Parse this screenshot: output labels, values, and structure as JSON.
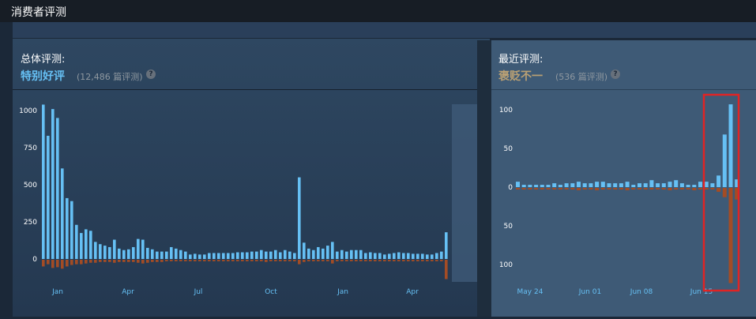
{
  "section_title": "消费者评测",
  "overall": {
    "label": "总体评测:",
    "summary": "特别好评",
    "count": "(12,486 篇评测)",
    "help": "?"
  },
  "recent": {
    "label": "最近评测:",
    "summary": "褒贬不一",
    "count": "(536 篇评测)",
    "help": "?"
  },
  "colors": {
    "positive": "#66c0f4",
    "negative": "#a34c25",
    "overall_summary": "#66c0f4",
    "recent_summary": "#b9a074",
    "highlight": "#e02424"
  },
  "chart_data": [
    {
      "type": "bar",
      "name": "overall-histogram",
      "y_ticks": [
        "1000",
        "750",
        "500",
        "250",
        "0"
      ],
      "ylim": [
        -70,
        1040
      ],
      "x_ticks": [
        "Jan",
        "Apr",
        "Jul",
        "Oct",
        "Jan",
        "Apr"
      ],
      "positive": [
        1040,
        830,
        1010,
        950,
        610,
        410,
        390,
        230,
        175,
        200,
        190,
        115,
        100,
        90,
        80,
        130,
        70,
        60,
        65,
        80,
        135,
        130,
        75,
        65,
        50,
        50,
        50,
        80,
        70,
        60,
        50,
        30,
        35,
        30,
        30,
        40,
        40,
        40,
        40,
        40,
        40,
        45,
        45,
        45,
        50,
        50,
        60,
        50,
        50,
        60,
        45,
        60,
        50,
        40,
        550,
        110,
        70,
        60,
        80,
        70,
        90,
        115,
        50,
        60,
        50,
        60,
        60,
        60,
        40,
        45,
        40,
        40,
        30,
        35,
        40,
        45,
        40,
        40,
        35,
        35,
        35,
        30,
        30,
        40,
        50,
        180
      ],
      "negative": [
        -45,
        -30,
        -55,
        -50,
        -60,
        -45,
        -35,
        -30,
        -30,
        -25,
        -20,
        -20,
        -15,
        -15,
        -15,
        -20,
        -15,
        -15,
        -15,
        -15,
        -20,
        -25,
        -20,
        -15,
        -15,
        -15,
        -10,
        -10,
        -10,
        -10,
        -10,
        -10,
        -10,
        -10,
        -10,
        -10,
        -10,
        -10,
        -10,
        -10,
        -10,
        -10,
        -10,
        -10,
        -10,
        -10,
        -10,
        -15,
        -10,
        -10,
        -10,
        -10,
        -10,
        -10,
        -30,
        -15,
        -10,
        -10,
        -10,
        -10,
        -10,
        -25,
        -10,
        -10,
        -10,
        -10,
        -10,
        -10,
        -10,
        -10,
        -10,
        -10,
        -10,
        -10,
        -10,
        -10,
        -10,
        -10,
        -10,
        -10,
        -10,
        -10,
        -10,
        -10,
        -10,
        -130
      ]
    },
    {
      "type": "bar",
      "name": "recent-histogram",
      "y_ticks": [
        "100",
        "50",
        "0",
        "50",
        "100"
      ],
      "ylim": [
        -125,
        110
      ],
      "x_ticks": [
        "May 24",
        "Jun 01",
        "Jun 08",
        "Jun 15"
      ],
      "positive": [
        7,
        3,
        3,
        3,
        3,
        3,
        5,
        3,
        5,
        5,
        7,
        5,
        5,
        7,
        7,
        5,
        5,
        5,
        7,
        3,
        5,
        5,
        9,
        5,
        5,
        7,
        9,
        5,
        3,
        3,
        7,
        7,
        5,
        15,
        68,
        107,
        10
      ],
      "negative": [
        -2,
        -2,
        -2,
        -2,
        -2,
        -2,
        -2,
        -2,
        -2,
        -2,
        -3,
        -2,
        -2,
        -3,
        -2,
        -2,
        -2,
        -2,
        -3,
        -2,
        -2,
        -2,
        -2,
        -2,
        -2,
        -3,
        -2,
        -2,
        -2,
        -3,
        -2,
        -2,
        -2,
        -5,
        -12,
        -123,
        -15
      ]
    }
  ]
}
